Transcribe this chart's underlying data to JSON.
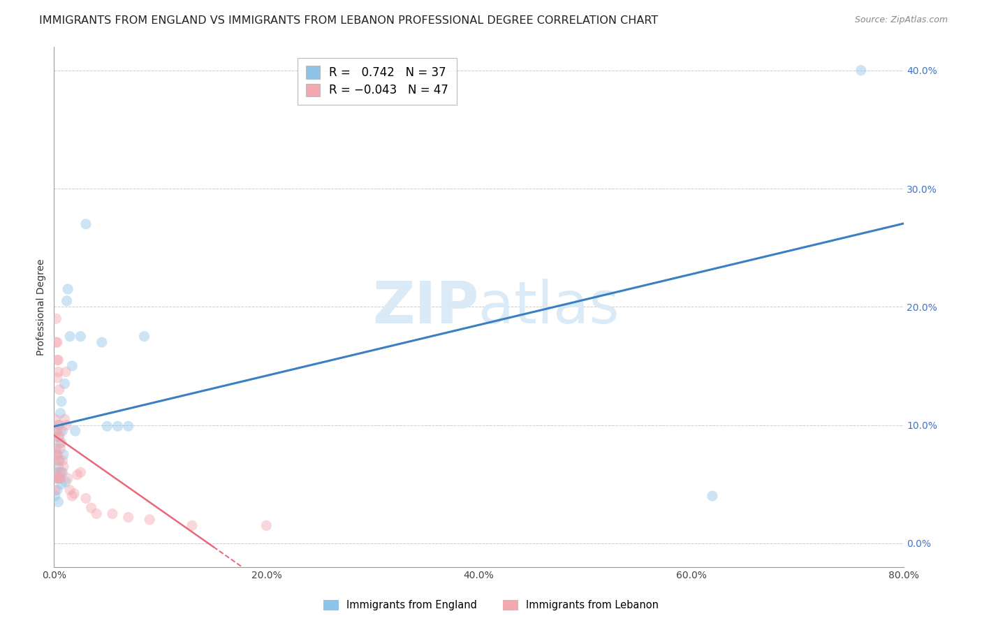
{
  "title": "IMMIGRANTS FROM ENGLAND VS IMMIGRANTS FROM LEBANON PROFESSIONAL DEGREE CORRELATION CHART",
  "source": "Source: ZipAtlas.com",
  "ylabel": "Professional Degree",
  "xlabel_ticks": [
    "0.0%",
    "20.0%",
    "40.0%",
    "60.0%",
    "80.0%"
  ],
  "ytick_labels": [
    "0.0%",
    "10.0%",
    "20.0%",
    "30.0%",
    "40.0%"
  ],
  "xlim": [
    0.0,
    0.8
  ],
  "ylim": [
    -0.02,
    0.42
  ],
  "ylim_data": [
    0.0,
    0.4
  ],
  "england_R": 0.742,
  "england_N": 37,
  "lebanon_R": -0.043,
  "lebanon_N": 47,
  "england_color": "#8ec4e8",
  "lebanon_color": "#f4a8b0",
  "england_line_color": "#3a7fc1",
  "lebanon_line_color": "#e8687a",
  "watermark_color": "#daeaf7",
  "background_color": "#ffffff",
  "grid_color": "#cccccc",
  "title_fontsize": 11.5,
  "axis_label_fontsize": 10,
  "tick_fontsize": 10,
  "legend_fontsize": 12,
  "marker_size": 120,
  "marker_alpha": 0.45,
  "england_x": [
    0.001,
    0.001,
    0.002,
    0.002,
    0.003,
    0.003,
    0.003,
    0.004,
    0.004,
    0.004,
    0.005,
    0.005,
    0.005,
    0.006,
    0.006,
    0.006,
    0.007,
    0.007,
    0.008,
    0.008,
    0.009,
    0.01,
    0.011,
    0.012,
    0.013,
    0.015,
    0.017,
    0.02,
    0.025,
    0.03,
    0.045,
    0.05,
    0.06,
    0.07,
    0.085,
    0.62,
    0.76
  ],
  "england_y": [
    0.055,
    0.04,
    0.08,
    0.06,
    0.095,
    0.075,
    0.045,
    0.09,
    0.065,
    0.035,
    0.07,
    0.1,
    0.055,
    0.085,
    0.11,
    0.06,
    0.12,
    0.05,
    0.095,
    0.06,
    0.075,
    0.135,
    0.052,
    0.205,
    0.215,
    0.175,
    0.15,
    0.095,
    0.175,
    0.27,
    0.17,
    0.099,
    0.099,
    0.099,
    0.175,
    0.04,
    0.4
  ],
  "lebanon_x": [
    0.001,
    0.001,
    0.001,
    0.001,
    0.001,
    0.001,
    0.002,
    0.002,
    0.002,
    0.002,
    0.002,
    0.003,
    0.003,
    0.003,
    0.003,
    0.003,
    0.004,
    0.004,
    0.004,
    0.004,
    0.005,
    0.005,
    0.005,
    0.006,
    0.006,
    0.006,
    0.007,
    0.007,
    0.008,
    0.009,
    0.01,
    0.011,
    0.012,
    0.013,
    0.015,
    0.017,
    0.019,
    0.022,
    0.025,
    0.03,
    0.035,
    0.04,
    0.055,
    0.07,
    0.09,
    0.13,
    0.2
  ],
  "lebanon_y": [
    0.055,
    0.07,
    0.09,
    0.105,
    0.08,
    0.045,
    0.19,
    0.17,
    0.095,
    0.075,
    0.06,
    0.17,
    0.155,
    0.14,
    0.075,
    0.055,
    0.155,
    0.145,
    0.1,
    0.07,
    0.13,
    0.09,
    0.055,
    0.095,
    0.08,
    0.055,
    0.085,
    0.06,
    0.07,
    0.065,
    0.105,
    0.145,
    0.1,
    0.055,
    0.045,
    0.04,
    0.042,
    0.058,
    0.06,
    0.038,
    0.03,
    0.025,
    0.025,
    0.022,
    0.02,
    0.015,
    0.015
  ]
}
